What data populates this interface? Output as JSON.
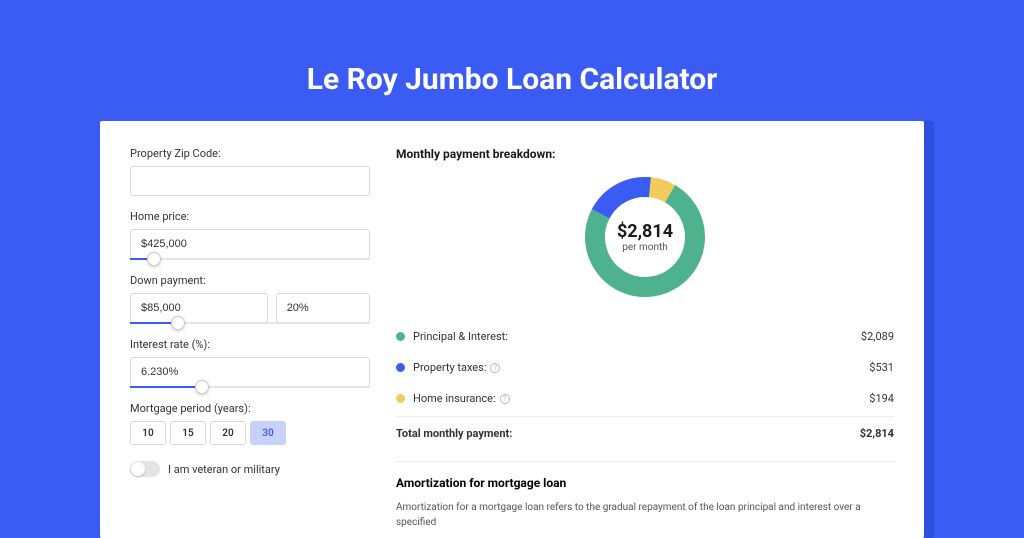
{
  "title": "Le Roy Jumbo Loan Calculator",
  "background_color": "#3b5bf5",
  "card_shadow_color": "#2f4fe0",
  "form": {
    "zip_label": "Property Zip Code:",
    "zip_value": "",
    "home_price_label": "Home price:",
    "home_price_value": "$425,000",
    "home_price_slider_pct": 10,
    "down_payment_label": "Down payment:",
    "down_payment_value": "$85,000",
    "down_payment_pct_value": "20%",
    "down_payment_slider_pct": 20,
    "interest_label": "Interest rate (%):",
    "interest_value": "6.230%",
    "interest_slider_pct": 30,
    "period_label": "Mortgage period (years):",
    "period_options": [
      "10",
      "15",
      "20",
      "30"
    ],
    "period_selected_index": 3,
    "veteran_label": "I am veteran or military",
    "veteran_on": false
  },
  "breakdown": {
    "title": "Monthly payment breakdown:",
    "donut": {
      "amount": "$2,814",
      "sub": "per month",
      "slices": [
        {
          "label": "Principal & Interest:",
          "value": "$2,089",
          "pct": 74.2,
          "color": "#4fb28e"
        },
        {
          "label": "Property taxes:",
          "value": "$531",
          "pct": 18.9,
          "color": "#3b5bf5",
          "info": true
        },
        {
          "label": "Home insurance:",
          "value": "$194",
          "pct": 6.9,
          "color": "#f2cb5a",
          "info": true
        }
      ],
      "stroke_width": 20,
      "bg_color": "#ffffff"
    },
    "total_label": "Total monthly payment:",
    "total_value": "$2,814"
  },
  "amortization": {
    "title": "Amortization for mortgage loan",
    "text": "Amortization for a mortgage loan refers to the gradual repayment of the loan principal and interest over a specified"
  }
}
